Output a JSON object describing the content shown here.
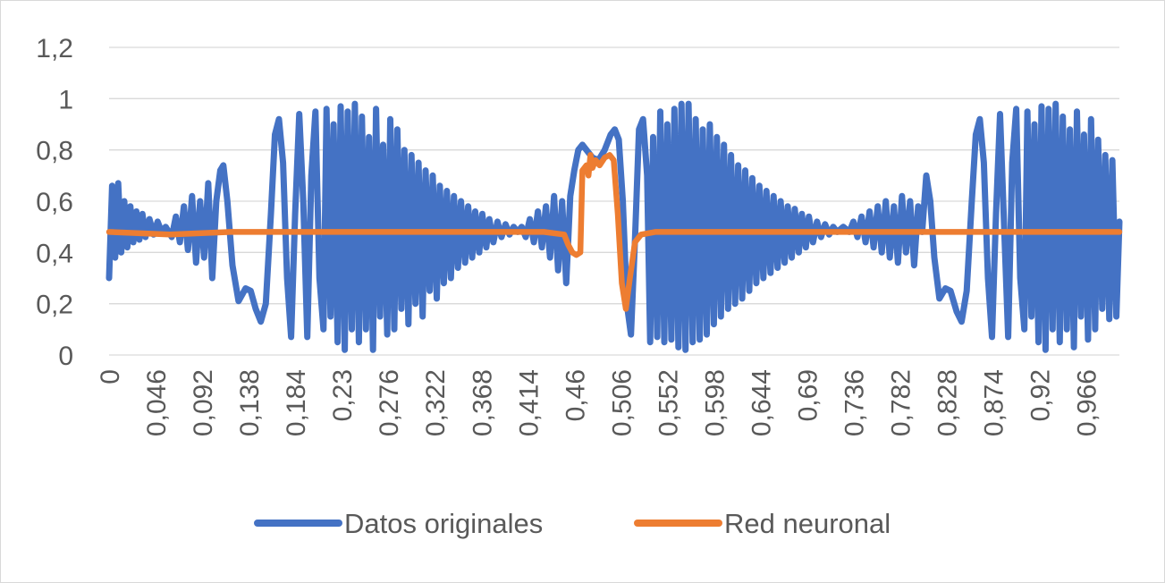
{
  "chart_data": {
    "type": "line",
    "title": "",
    "xlabel": "",
    "ylabel": "",
    "xlim": [
      0,
      0.999
    ],
    "ylim": [
      0,
      1.2
    ],
    "y_ticks": [
      "0",
      "0,2",
      "0,4",
      "0,6",
      "0,8",
      "1",
      "1,2"
    ],
    "y_tick_values": [
      0,
      0.2,
      0.4,
      0.6,
      0.8,
      1.0,
      1.2
    ],
    "x_ticks": [
      "0",
      "0,046",
      "0,092",
      "0,138",
      "0,184",
      "0,23",
      "0,276",
      "0,322",
      "0,368",
      "0,414",
      "0,46",
      "0,506",
      "0,552",
      "0,598",
      "0,644",
      "0,69",
      "0,736",
      "0,782",
      "0,828",
      "0,874",
      "0,92",
      "0,966"
    ],
    "x_tick_values": [
      0,
      0.046,
      0.092,
      0.138,
      0.184,
      0.23,
      0.276,
      0.322,
      0.368,
      0.414,
      0.46,
      0.506,
      0.552,
      0.598,
      0.644,
      0.69,
      0.736,
      0.782,
      0.828,
      0.874,
      0.92,
      0.966
    ],
    "grid": true,
    "legend_position": "bottom",
    "series": [
      {
        "name": "Datos originales",
        "color": "#4472c4",
        "note_shape": "oscillating",
        "points": [
          [
            0.0,
            0.3
          ],
          [
            0.003,
            0.66
          ],
          [
            0.006,
            0.38
          ],
          [
            0.009,
            0.67
          ],
          [
            0.012,
            0.4
          ],
          [
            0.015,
            0.6
          ],
          [
            0.018,
            0.42
          ],
          [
            0.021,
            0.58
          ],
          [
            0.024,
            0.44
          ],
          [
            0.027,
            0.56
          ],
          [
            0.03,
            0.45
          ],
          [
            0.033,
            0.55
          ],
          [
            0.036,
            0.46
          ],
          [
            0.04,
            0.53
          ],
          [
            0.044,
            0.47
          ],
          [
            0.048,
            0.52
          ],
          [
            0.052,
            0.48
          ],
          [
            0.056,
            0.5
          ],
          [
            0.062,
            0.46
          ],
          [
            0.066,
            0.54
          ],
          [
            0.07,
            0.44
          ],
          [
            0.074,
            0.58
          ],
          [
            0.078,
            0.41
          ],
          [
            0.082,
            0.62
          ],
          [
            0.086,
            0.36
          ],
          [
            0.09,
            0.6
          ],
          [
            0.094,
            0.38
          ],
          [
            0.098,
            0.67
          ],
          [
            0.102,
            0.3
          ],
          [
            0.106,
            0.6
          ],
          [
            0.11,
            0.72
          ],
          [
            0.113,
            0.74
          ],
          [
            0.117,
            0.6
          ],
          [
            0.122,
            0.35
          ],
          [
            0.128,
            0.21
          ],
          [
            0.135,
            0.26
          ],
          [
            0.14,
            0.25
          ],
          [
            0.145,
            0.18
          ],
          [
            0.15,
            0.13
          ],
          [
            0.155,
            0.2
          ],
          [
            0.16,
            0.55
          ],
          [
            0.164,
            0.86
          ],
          [
            0.168,
            0.92
          ],
          [
            0.172,
            0.75
          ],
          [
            0.176,
            0.3
          ],
          [
            0.18,
            0.07
          ],
          [
            0.184,
            0.55
          ],
          [
            0.188,
            0.94
          ],
          [
            0.192,
            0.6
          ],
          [
            0.196,
            0.07
          ],
          [
            0.2,
            0.7
          ],
          [
            0.204,
            0.95
          ],
          [
            0.208,
            0.3
          ],
          [
            0.212,
            0.1
          ],
          [
            0.215,
            0.96
          ],
          [
            0.219,
            0.15
          ],
          [
            0.222,
            0.9
          ],
          [
            0.226,
            0.05
          ],
          [
            0.229,
            0.97
          ],
          [
            0.233,
            0.02
          ],
          [
            0.236,
            0.95
          ],
          [
            0.24,
            0.1
          ],
          [
            0.243,
            0.98
          ],
          [
            0.247,
            0.05
          ],
          [
            0.25,
            0.93
          ],
          [
            0.254,
            0.1
          ],
          [
            0.257,
            0.85
          ],
          [
            0.261,
            0.02
          ],
          [
            0.264,
            0.96
          ],
          [
            0.268,
            0.15
          ],
          [
            0.271,
            0.82
          ],
          [
            0.275,
            0.08
          ],
          [
            0.278,
            0.92
          ],
          [
            0.282,
            0.1
          ],
          [
            0.285,
            0.88
          ],
          [
            0.289,
            0.18
          ],
          [
            0.292,
            0.8
          ],
          [
            0.296,
            0.12
          ],
          [
            0.299,
            0.78
          ],
          [
            0.303,
            0.2
          ],
          [
            0.306,
            0.75
          ],
          [
            0.31,
            0.15
          ],
          [
            0.313,
            0.72
          ],
          [
            0.317,
            0.25
          ],
          [
            0.32,
            0.7
          ],
          [
            0.324,
            0.22
          ],
          [
            0.327,
            0.66
          ],
          [
            0.331,
            0.28
          ],
          [
            0.334,
            0.64
          ],
          [
            0.338,
            0.3
          ],
          [
            0.341,
            0.62
          ],
          [
            0.345,
            0.34
          ],
          [
            0.348,
            0.6
          ],
          [
            0.352,
            0.36
          ],
          [
            0.355,
            0.58
          ],
          [
            0.359,
            0.38
          ],
          [
            0.362,
            0.56
          ],
          [
            0.366,
            0.4
          ],
          [
            0.369,
            0.55
          ],
          [
            0.373,
            0.42
          ],
          [
            0.376,
            0.53
          ],
          [
            0.38,
            0.44
          ],
          [
            0.384,
            0.52
          ],
          [
            0.388,
            0.46
          ],
          [
            0.392,
            0.51
          ],
          [
            0.396,
            0.47
          ],
          [
            0.4,
            0.5
          ],
          [
            0.404,
            0.48
          ],
          [
            0.408,
            0.5
          ],
          [
            0.412,
            0.46
          ],
          [
            0.416,
            0.53
          ],
          [
            0.42,
            0.44
          ],
          [
            0.424,
            0.56
          ],
          [
            0.428,
            0.42
          ],
          [
            0.432,
            0.58
          ],
          [
            0.436,
            0.38
          ],
          [
            0.44,
            0.62
          ],
          [
            0.444,
            0.33
          ],
          [
            0.448,
            0.6
          ],
          [
            0.452,
            0.28
          ],
          [
            0.456,
            0.62
          ],
          [
            0.46,
            0.72
          ],
          [
            0.464,
            0.8
          ],
          [
            0.468,
            0.82
          ],
          [
            0.472,
            0.8
          ],
          [
            0.478,
            0.77
          ],
          [
            0.484,
            0.76
          ],
          [
            0.49,
            0.8
          ],
          [
            0.496,
            0.86
          ],
          [
            0.5,
            0.88
          ],
          [
            0.504,
            0.84
          ],
          [
            0.508,
            0.6
          ],
          [
            0.512,
            0.2
          ],
          [
            0.516,
            0.08
          ],
          [
            0.52,
            0.45
          ],
          [
            0.524,
            0.88
          ],
          [
            0.528,
            0.92
          ],
          [
            0.532,
            0.7
          ],
          [
            0.535,
            0.05
          ],
          [
            0.538,
            0.85
          ],
          [
            0.542,
            0.07
          ],
          [
            0.545,
            0.95
          ],
          [
            0.549,
            0.05
          ],
          [
            0.552,
            0.9
          ],
          [
            0.556,
            0.06
          ],
          [
            0.559,
            0.96
          ],
          [
            0.563,
            0.03
          ],
          [
            0.566,
            0.98
          ],
          [
            0.57,
            0.02
          ],
          [
            0.573,
            0.98
          ],
          [
            0.577,
            0.05
          ],
          [
            0.58,
            0.92
          ],
          [
            0.584,
            0.06
          ],
          [
            0.587,
            0.88
          ],
          [
            0.591,
            0.08
          ],
          [
            0.594,
            0.9
          ],
          [
            0.598,
            0.12
          ],
          [
            0.601,
            0.85
          ],
          [
            0.605,
            0.15
          ],
          [
            0.608,
            0.82
          ],
          [
            0.612,
            0.18
          ],
          [
            0.615,
            0.78
          ],
          [
            0.619,
            0.2
          ],
          [
            0.622,
            0.74
          ],
          [
            0.626,
            0.22
          ],
          [
            0.629,
            0.72
          ],
          [
            0.633,
            0.25
          ],
          [
            0.636,
            0.69
          ],
          [
            0.64,
            0.28
          ],
          [
            0.643,
            0.66
          ],
          [
            0.647,
            0.3
          ],
          [
            0.65,
            0.64
          ],
          [
            0.654,
            0.32
          ],
          [
            0.657,
            0.62
          ],
          [
            0.661,
            0.34
          ],
          [
            0.664,
            0.6
          ],
          [
            0.668,
            0.36
          ],
          [
            0.671,
            0.58
          ],
          [
            0.675,
            0.38
          ],
          [
            0.678,
            0.57
          ],
          [
            0.682,
            0.4
          ],
          [
            0.685,
            0.55
          ],
          [
            0.689,
            0.42
          ],
          [
            0.692,
            0.54
          ],
          [
            0.696,
            0.44
          ],
          [
            0.7,
            0.52
          ],
          [
            0.704,
            0.46
          ],
          [
            0.708,
            0.51
          ],
          [
            0.712,
            0.47
          ],
          [
            0.716,
            0.5
          ],
          [
            0.72,
            0.48
          ],
          [
            0.726,
            0.5
          ],
          [
            0.732,
            0.48
          ],
          [
            0.736,
            0.52
          ],
          [
            0.74,
            0.46
          ],
          [
            0.744,
            0.54
          ],
          [
            0.748,
            0.44
          ],
          [
            0.752,
            0.56
          ],
          [
            0.756,
            0.42
          ],
          [
            0.76,
            0.58
          ],
          [
            0.764,
            0.4
          ],
          [
            0.768,
            0.6
          ],
          [
            0.772,
            0.38
          ],
          [
            0.776,
            0.58
          ],
          [
            0.78,
            0.36
          ],
          [
            0.784,
            0.62
          ],
          [
            0.788,
            0.4
          ],
          [
            0.792,
            0.6
          ],
          [
            0.796,
            0.35
          ],
          [
            0.8,
            0.58
          ],
          [
            0.804,
            0.48
          ],
          [
            0.808,
            0.7
          ],
          [
            0.812,
            0.6
          ],
          [
            0.816,
            0.38
          ],
          [
            0.821,
            0.22
          ],
          [
            0.827,
            0.26
          ],
          [
            0.832,
            0.25
          ],
          [
            0.838,
            0.17
          ],
          [
            0.843,
            0.13
          ],
          [
            0.848,
            0.25
          ],
          [
            0.853,
            0.6
          ],
          [
            0.857,
            0.86
          ],
          [
            0.861,
            0.92
          ],
          [
            0.865,
            0.75
          ],
          [
            0.869,
            0.3
          ],
          [
            0.873,
            0.07
          ],
          [
            0.877,
            0.55
          ],
          [
            0.881,
            0.94
          ],
          [
            0.885,
            0.5
          ],
          [
            0.889,
            0.07
          ],
          [
            0.893,
            0.75
          ],
          [
            0.897,
            0.96
          ],
          [
            0.901,
            0.3
          ],
          [
            0.905,
            0.1
          ],
          [
            0.908,
            0.95
          ],
          [
            0.912,
            0.15
          ],
          [
            0.915,
            0.9
          ],
          [
            0.919,
            0.05
          ],
          [
            0.922,
            0.97
          ],
          [
            0.926,
            0.02
          ],
          [
            0.929,
            0.96
          ],
          [
            0.933,
            0.1
          ],
          [
            0.936,
            0.98
          ],
          [
            0.94,
            0.05
          ],
          [
            0.943,
            0.93
          ],
          [
            0.947,
            0.1
          ],
          [
            0.95,
            0.88
          ],
          [
            0.954,
            0.03
          ],
          [
            0.957,
            0.95
          ],
          [
            0.961,
            0.15
          ],
          [
            0.964,
            0.86
          ],
          [
            0.968,
            0.06
          ],
          [
            0.971,
            0.92
          ],
          [
            0.975,
            0.1
          ],
          [
            0.978,
            0.84
          ],
          [
            0.982,
            0.18
          ],
          [
            0.985,
            0.78
          ],
          [
            0.989,
            0.14
          ],
          [
            0.992,
            0.76
          ],
          [
            0.996,
            0.15
          ],
          [
            0.999,
            0.52
          ]
        ]
      },
      {
        "name": "Red neuronal",
        "color": "#ed7d31",
        "points": [
          [
            0.0,
            0.48
          ],
          [
            0.06,
            0.47
          ],
          [
            0.12,
            0.48
          ],
          [
            0.2,
            0.48
          ],
          [
            0.3,
            0.48
          ],
          [
            0.4,
            0.48
          ],
          [
            0.43,
            0.48
          ],
          [
            0.45,
            0.47
          ],
          [
            0.454,
            0.43
          ],
          [
            0.458,
            0.4
          ],
          [
            0.462,
            0.39
          ],
          [
            0.466,
            0.4
          ],
          [
            0.468,
            0.72
          ],
          [
            0.472,
            0.74
          ],
          [
            0.474,
            0.7
          ],
          [
            0.476,
            0.78
          ],
          [
            0.478,
            0.73
          ],
          [
            0.481,
            0.76
          ],
          [
            0.485,
            0.74
          ],
          [
            0.49,
            0.77
          ],
          [
            0.495,
            0.78
          ],
          [
            0.499,
            0.76
          ],
          [
            0.503,
            0.55
          ],
          [
            0.507,
            0.28
          ],
          [
            0.511,
            0.18
          ],
          [
            0.515,
            0.3
          ],
          [
            0.52,
            0.44
          ],
          [
            0.526,
            0.47
          ],
          [
            0.54,
            0.48
          ],
          [
            0.6,
            0.48
          ],
          [
            0.7,
            0.48
          ],
          [
            0.8,
            0.48
          ],
          [
            0.9,
            0.48
          ],
          [
            0.999,
            0.48
          ]
        ]
      }
    ]
  }
}
